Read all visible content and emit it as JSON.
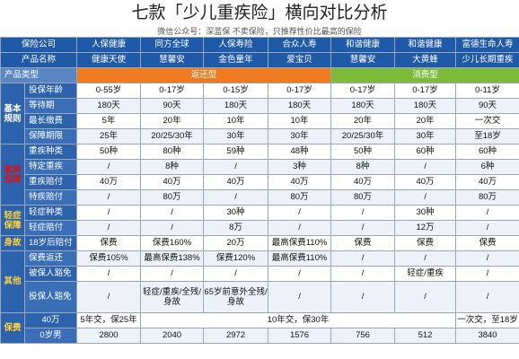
{
  "title": "七款「少儿重疾险」横向对比分析",
  "subtitle": "微信公众号：深蓝保 不卖保险，只推荐性价比最高的保险",
  "header": {
    "company_label": "保险公司",
    "product_label": "产品名称",
    "companies": [
      "人保健康",
      "同方全球",
      "人保寿险",
      "合众人寿",
      "和谐健康",
      "和谐健康",
      "富德生命人寿"
    ],
    "products": [
      "健康天使",
      "慧馨安",
      "金色童年",
      "爱宝贝",
      "慧馨安",
      "大黄蜂",
      "少儿长期重疾"
    ]
  },
  "type_row": {
    "label": "产品类型",
    "return_label": "返还型",
    "consume_label": "消费型"
  },
  "categories": {
    "basic": "基本规则",
    "critical": "重疾保障",
    "mild": "轻症保障",
    "death": "身故",
    "other": "其他",
    "premium": "保费"
  },
  "rows": {
    "age": {
      "label": "投保年龄",
      "values": [
        "0-55岁",
        "0-17岁",
        "0-15岁",
        "0-17岁",
        "0-17岁",
        "0-17岁",
        "0-11岁"
      ]
    },
    "wait": {
      "label": "等待期",
      "values": [
        "180天",
        "90天",
        "180天",
        "180天",
        "180天",
        "180天",
        "90天"
      ]
    },
    "pay": {
      "label": "最长缴费",
      "values": [
        "5年",
        "20年",
        "10年",
        "10年",
        "20年",
        "20年",
        "一次交"
      ]
    },
    "term": {
      "label": "保障期限",
      "values": [
        "25年",
        "20/25/30年",
        "30年",
        "30年",
        "20/25/30年",
        "30年",
        "至18岁"
      ]
    },
    "crit_kinds": {
      "label": "重疾种类",
      "values": [
        "50种",
        "80种",
        "59种",
        "48种",
        "50种",
        "60种",
        "60种"
      ]
    },
    "special_kinds": {
      "label": "特定重疾",
      "values": [
        "/",
        "8种",
        "/",
        "3种",
        "8种",
        "/",
        "6种"
      ]
    },
    "crit_pay": {
      "label": "重疾赔付",
      "values": [
        "40万",
        "40万",
        "40万",
        "40万",
        "40万",
        "40万",
        "40万"
      ]
    },
    "special_pay": {
      "label": "特疾赔付",
      "values": [
        "/",
        "80万",
        "/",
        "80万",
        "80万",
        "/",
        "80万"
      ]
    },
    "mild_kinds": {
      "label": "轻症种类",
      "values": [
        "/",
        "/",
        "30种",
        "/",
        "/",
        "30种",
        "/"
      ]
    },
    "mild_pay": {
      "label": "轻症赔付",
      "values": [
        "/",
        "/",
        "8万",
        "/",
        "/",
        "12万",
        "/"
      ]
    },
    "death18": {
      "label": "18岁后赔付",
      "values": [
        "保费",
        "保费160%",
        "20万",
        "最高保费110%",
        "保费",
        "保费",
        "保费"
      ]
    },
    "refund": {
      "label": "保费返还",
      "values": [
        "保费105%",
        "最高保费138%",
        "保费120%",
        "最高保费110%",
        "/",
        "/",
        "/"
      ]
    },
    "waiver_insured": {
      "label": "被保人豁免",
      "values": [
        "/",
        "/",
        "/",
        "/",
        "/",
        "轻症/重疾",
        "/"
      ]
    },
    "waiver_holder": {
      "label": "投保人豁免",
      "values": [
        "/",
        "轻症/重疾/全残/身故",
        "65岁前意外全残/身故",
        "/",
        "/",
        "/",
        "/"
      ]
    },
    "premium_terms": {
      "label": "40万",
      "values": [
        "5年交，保25年",
        "10年交，保30年",
        "一次交，至18岁"
      ]
    },
    "premium_boy": {
      "label": "0岁男",
      "values": [
        "2800",
        "2040",
        "2972",
        "1576",
        "756",
        "512",
        "3840"
      ]
    }
  }
}
